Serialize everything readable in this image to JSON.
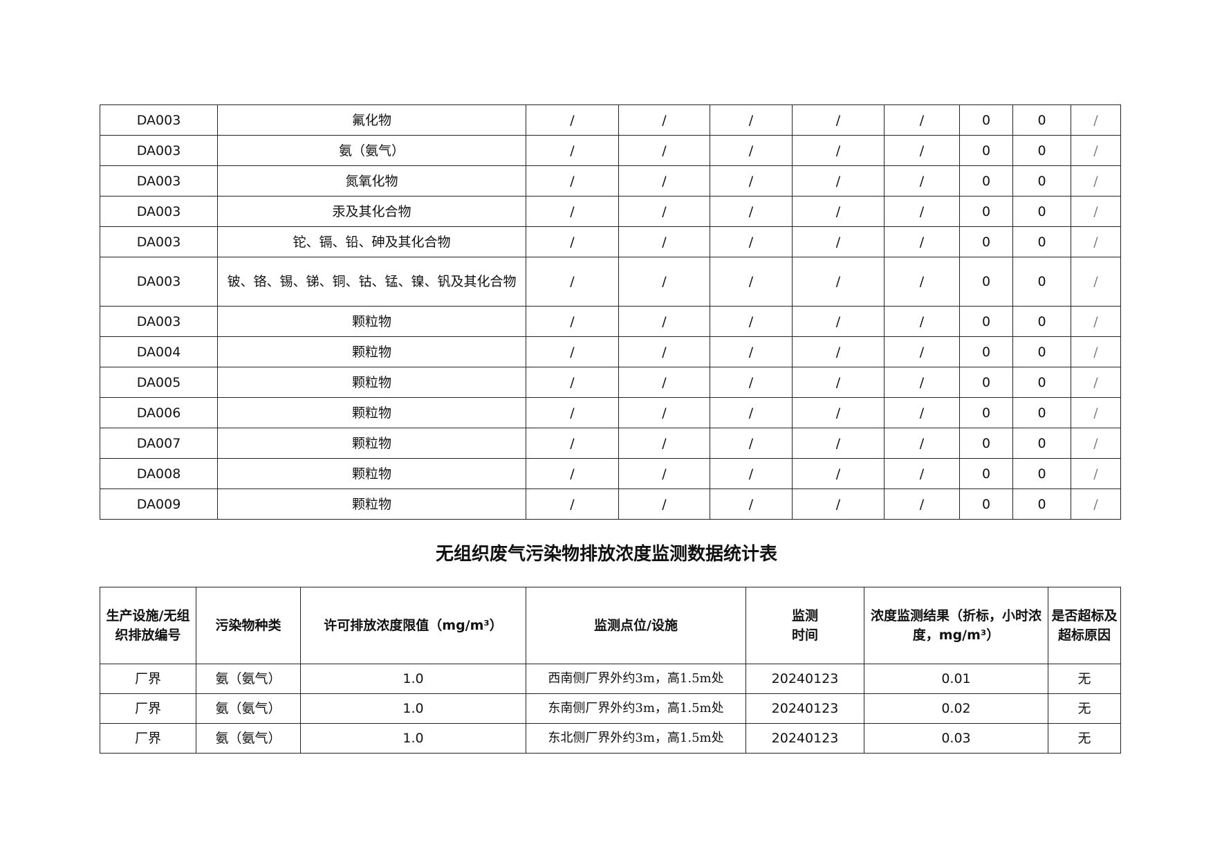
{
  "table1": {
    "rows": [
      [
        "DA003",
        "氟化物",
        "/",
        "/",
        "/",
        "/",
        "/",
        "0",
        "0",
        "/"
      ],
      [
        "DA003",
        "氨（氨气）",
        "/",
        "/",
        "/",
        "/",
        "/",
        "0",
        "0",
        "/"
      ],
      [
        "DA003",
        "氮氧化物",
        "/",
        "/",
        "/",
        "/",
        "/",
        "0",
        "0",
        "/"
      ],
      [
        "DA003",
        "汞及其化合物",
        "/",
        "/",
        "/",
        "/",
        "/",
        "0",
        "0",
        "/"
      ],
      [
        "DA003",
        "铊、镉、铅、砷及其化合物",
        "/",
        "/",
        "/",
        "/",
        "/",
        "0",
        "0",
        "/"
      ],
      [
        "DA003",
        "铍、铬、锡、锑、铜、钴、锰、镍、钒及其化合物",
        "/",
        "/",
        "/",
        "/",
        "/",
        "0",
        "0",
        "/"
      ],
      [
        "DA003",
        "颗粒物",
        "/",
        "/",
        "/",
        "/",
        "/",
        "0",
        "0",
        "/"
      ],
      [
        "DA004",
        "颗粒物",
        "/",
        "/",
        "/",
        "/",
        "/",
        "0",
        "0",
        "/"
      ],
      [
        "DA005",
        "颗粒物",
        "/",
        "/",
        "/",
        "/",
        "/",
        "0",
        "0",
        "/"
      ],
      [
        "DA006",
        "颗粒物",
        "/",
        "/",
        "/",
        "/",
        "/",
        "0",
        "0",
        "/"
      ],
      [
        "DA007",
        "颗粒物",
        "/",
        "/",
        "/",
        "/",
        "/",
        "0",
        "0",
        "/"
      ],
      [
        "DA008",
        "颗粒物",
        "/",
        "/",
        "/",
        "/",
        "/",
        "0",
        "0",
        "/"
      ],
      [
        "DA009",
        "颗粒物",
        "/",
        "/",
        "/",
        "/",
        "/",
        "0",
        "0",
        "/"
      ]
    ]
  },
  "title": "无组织废气污染物排放浓度监测数据统计表",
  "table2": {
    "headers": [
      "生产设施/无组织排放编号",
      "污染物种类",
      "许可排放浓度限值（mg/m³）",
      "监测点位/设施",
      "监测\n时间",
      "浓度监测结果（折标，小时浓度，mg/m³）",
      "是否超标及超标原因"
    ],
    "rows": [
      [
        "厂界",
        "氨（氨气）",
        "1.0",
        "西南侧厂界外约3m，高1.5m处",
        "20240123",
        "0.01",
        "无"
      ],
      [
        "厂界",
        "氨（氨气）",
        "1.0",
        "东南侧厂界外约3m，高1.5m处",
        "20240123",
        "0.02",
        "无"
      ],
      [
        "厂界",
        "氨（氨气）",
        "1.0",
        "东北侧厂界外约3m，高1.5m处",
        "20240123",
        "0.03",
        "无"
      ]
    ]
  }
}
